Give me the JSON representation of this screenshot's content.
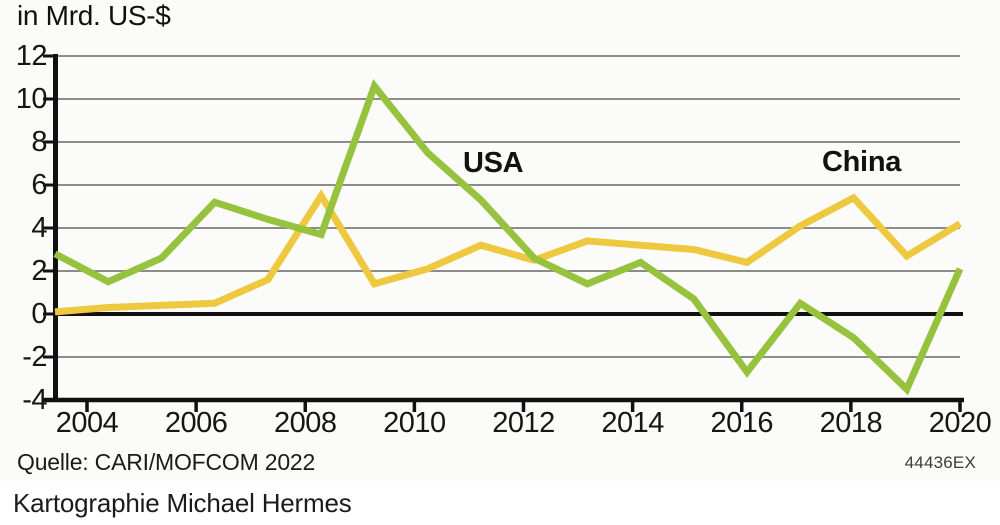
{
  "title": "in Mrd. US-$",
  "chart_data": {
    "type": "line",
    "title": "in Mrd. US-$",
    "xlabel": "",
    "ylabel": "in Mrd. US-$",
    "x": [
      2003,
      2004,
      2005,
      2006,
      2007,
      2008,
      2009,
      2010,
      2011,
      2012,
      2013,
      2014,
      2015,
      2016,
      2017,
      2018,
      2019,
      2020
    ],
    "series": [
      {
        "name": "China",
        "color": "#eec940",
        "values": [
          0.1,
          0.3,
          0.4,
          0.5,
          1.6,
          5.5,
          1.4,
          2.1,
          3.2,
          2.5,
          3.4,
          3.2,
          3.0,
          2.4,
          4.1,
          5.4,
          2.7,
          4.2
        ]
      },
      {
        "name": "USA",
        "color": "#97c23d",
        "values": [
          2.8,
          1.5,
          2.6,
          5.2,
          4.4,
          3.7,
          10.6,
          7.5,
          5.3,
          2.6,
          1.4,
          2.4,
          0.7,
          -2.7,
          0.5,
          -1.1,
          -3.5,
          2.1
        ]
      }
    ],
    "xticks": [
      2004,
      2006,
      2008,
      2010,
      2012,
      2014,
      2016,
      2018,
      2020
    ],
    "yticks": [
      12,
      10,
      8,
      6,
      4,
      2,
      0,
      -2,
      -4
    ],
    "ylim": [
      -4,
      12
    ],
    "xlim": [
      2003,
      2020
    ],
    "grid": true,
    "grid_color": "#8c8c8c",
    "axis_color": "#111111",
    "zero_line": true,
    "legend_position": "inline-labels"
  },
  "labels": {
    "usa": "USA",
    "china": "China"
  },
  "footer": {
    "source": "Quelle: CARI/MOFCOM 2022",
    "code": "44436EX",
    "attribution": "Kartographie Michael Hermes"
  }
}
